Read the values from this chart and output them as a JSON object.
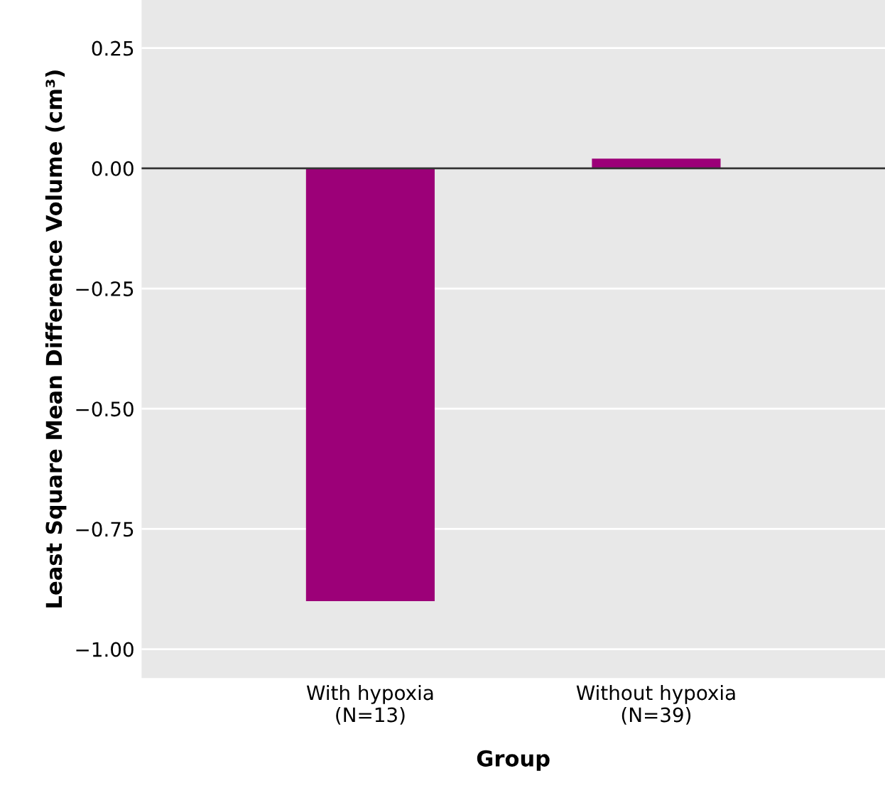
{
  "chart_data": {
    "type": "bar",
    "xlabel": "Group",
    "ylabel": "Least Square Mean Difference Volume (cm³)",
    "categories": [
      "With hypoxia\n(N=13)",
      "Without hypoxia\n(N=39)"
    ],
    "values": [
      -0.9,
      0.02
    ],
    "color": "#9c0078",
    "ylim": [
      -1.06,
      0.35
    ],
    "yticks": [
      {
        "value": 0.25,
        "label": "0.25"
      },
      {
        "value": 0,
        "label": "0.00"
      },
      {
        "value": -0.25,
        "label": "−0.25"
      },
      {
        "value": -0.5,
        "label": "−0.50"
      },
      {
        "value": -0.75,
        "label": "−0.75"
      },
      {
        "value": -1,
        "label": "−1.00"
      }
    ],
    "grid": "y",
    "ref_lines": [
      {
        "axis": "y",
        "value": 0,
        "color": "#333333"
      }
    ]
  }
}
